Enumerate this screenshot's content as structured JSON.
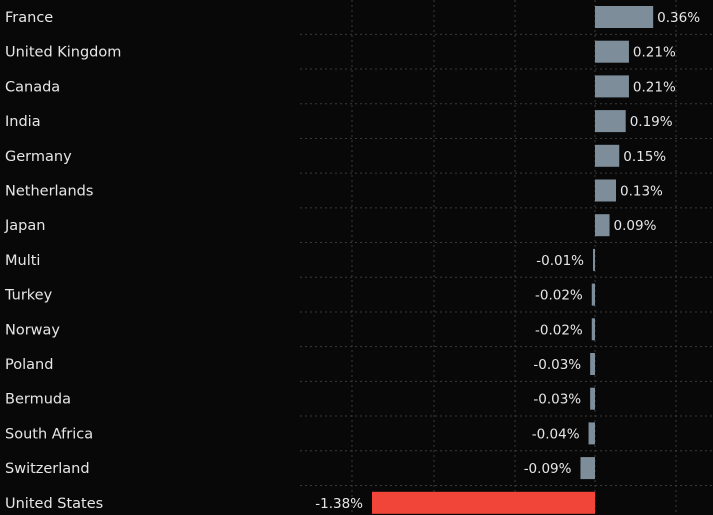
{
  "chart_data": {
    "type": "bar",
    "orientation": "horizontal",
    "title": "",
    "xlabel": "",
    "ylabel": "",
    "grid": true,
    "xlim": [
      -1.38,
      0.36
    ],
    "categories": [
      "France",
      "United Kingdom",
      "Canada",
      "India",
      "Germany",
      "Netherlands",
      "Japan",
      "Multi",
      "Turkey",
      "Norway",
      "Poland",
      "Bermuda",
      "South Africa",
      "Switzerland",
      "United States"
    ],
    "values": [
      0.36,
      0.21,
      0.21,
      0.19,
      0.15,
      0.13,
      0.09,
      -0.01,
      -0.02,
      -0.02,
      -0.03,
      -0.03,
      -0.04,
      -0.09,
      -1.38
    ],
    "value_labels": [
      "0.36%",
      "0.21%",
      "0.21%",
      "0.19%",
      "0.15%",
      "0.13%",
      "0.09%",
      "-0.01%",
      "-0.02%",
      "-0.02%",
      "-0.03%",
      "-0.03%",
      "-0.04%",
      "-0.09%",
      "-1.38%"
    ],
    "colors": {
      "default_bar": "#7d8e9a",
      "highlight_bar": "#f2453a",
      "text": "#e6e6e6",
      "grid": "#3a3a3a",
      "background": "#080808"
    },
    "highlight_category": "United States"
  }
}
